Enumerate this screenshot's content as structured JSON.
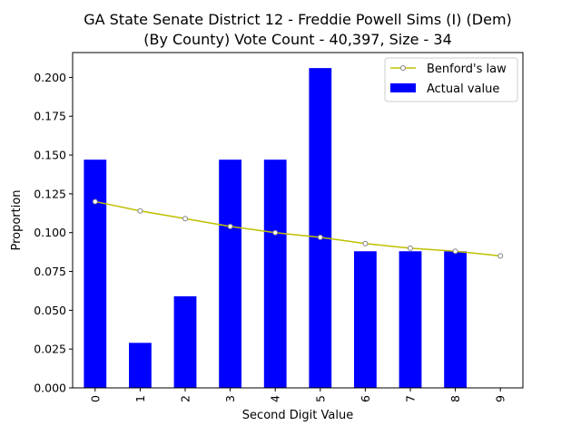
{
  "chart_data": {
    "type": "bar",
    "title_line1": "GA State Senate District 12 - Freddie Powell Sims (I) (Dem)",
    "title_line2": "(By County) Vote Count - 40,397, Size - 34",
    "xlabel": "Second Digit Value",
    "ylabel": "Proportion",
    "categories": [
      "0",
      "1",
      "2",
      "3",
      "4",
      "5",
      "6",
      "7",
      "8",
      "9"
    ],
    "ylim": [
      0,
      0.216
    ],
    "yticks": [
      0.0,
      0.025,
      0.05,
      0.075,
      0.1,
      0.125,
      0.15,
      0.175,
      0.2
    ],
    "ytick_labels": [
      "0.000",
      "0.025",
      "0.050",
      "0.075",
      "0.100",
      "0.125",
      "0.150",
      "0.175",
      "0.200"
    ],
    "grid": false,
    "legend_position": "top-right",
    "series": [
      {
        "name": "Benford's law",
        "kind": "line",
        "color": "#bfbf00",
        "marker_color": "#808080",
        "values": [
          0.12,
          0.114,
          0.109,
          0.104,
          0.1,
          0.097,
          0.093,
          0.09,
          0.088,
          0.085
        ]
      },
      {
        "name": "Actual value",
        "kind": "bar",
        "color": "#0000ff",
        "values": [
          0.147,
          0.029,
          0.059,
          0.147,
          0.147,
          0.206,
          0.088,
          0.088,
          0.088,
          0.0
        ]
      }
    ]
  }
}
